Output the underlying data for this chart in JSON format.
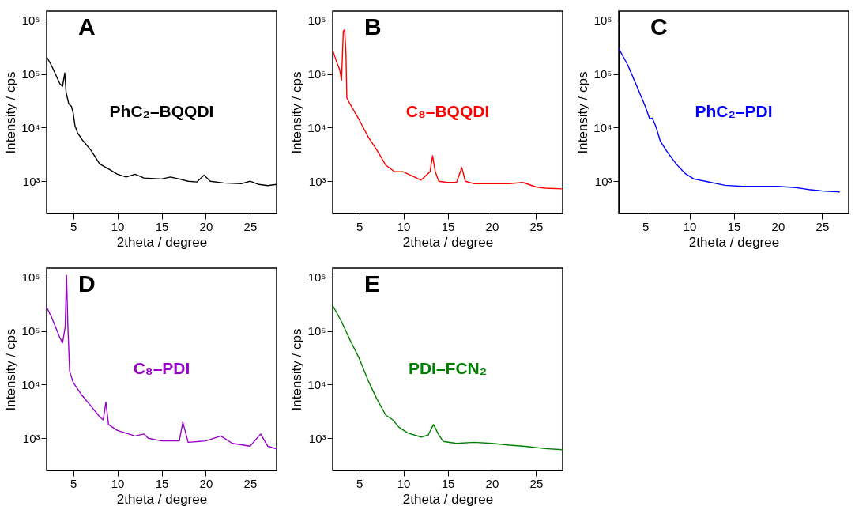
{
  "chart_data": [
    {
      "type": "line",
      "title": "A",
      "xlabel": "2theta / degree",
      "ylabel": "Intensity / cps",
      "log": true,
      "xlim": [
        2,
        28
      ],
      "ylim": [
        250,
        1500000
      ],
      "xticks": [
        5,
        10,
        15,
        20,
        25
      ],
      "yticks": [
        {
          "value": 1000,
          "label": "10³"
        },
        {
          "value": 10000,
          "label": "10⁴"
        },
        {
          "value": 100000,
          "label": "10⁵"
        },
        {
          "value": 1000000,
          "label": "10⁶"
        }
      ],
      "x": [
        2,
        2.5,
        3,
        3.5,
        3.8,
        4.05,
        4.2,
        4.5,
        4.8,
        5,
        5.2,
        5.5,
        6,
        7,
        8,
        9,
        10,
        11,
        12,
        13,
        15,
        16,
        17,
        18,
        19,
        19.8,
        20.5,
        22,
        24,
        25,
        26,
        27,
        28
      ],
      "series": [
        {
          "name": "PhC₂–BQQDI",
          "color": "#000000",
          "values": [
            210000,
            150000,
            100000,
            66000,
            59000,
            105000,
            46000,
            28000,
            25000,
            19000,
            11000,
            8000,
            6000,
            3800,
            2100,
            1700,
            1350,
            1200,
            1350,
            1150,
            1100,
            1200,
            1100,
            1000,
            970,
            1300,
            1000,
            930,
            900,
            1000,
            870,
            830,
            870
          ]
        }
      ]
    },
    {
      "type": "line",
      "title": "B",
      "xlabel": "2theta / degree",
      "ylabel": "Intensity / cps",
      "log": true,
      "xlim": [
        2,
        28
      ],
      "ylim": [
        250,
        1500000
      ],
      "xticks": [
        5,
        10,
        15,
        20,
        25
      ],
      "yticks": [
        {
          "value": 1000,
          "label": "10³"
        },
        {
          "value": 10000,
          "label": "10⁴"
        },
        {
          "value": 100000,
          "label": "10⁵"
        },
        {
          "value": 1000000,
          "label": "10⁶"
        }
      ],
      "x": [
        2,
        2.5,
        2.8,
        3,
        3.2,
        3.35,
        3.5,
        3.6,
        4,
        5,
        6,
        7,
        8,
        9,
        10,
        11,
        12,
        13,
        13.3,
        13.6,
        14,
        15,
        16,
        16.6,
        17,
        18,
        20,
        22,
        23.5,
        25,
        26,
        28
      ],
      "series": [
        {
          "name": "C₈–BQQDI",
          "color": "#ff0000",
          "values": [
            280000,
            160000,
            120000,
            77000,
            630000,
            670000,
            250000,
            36000,
            27000,
            14000,
            6800,
            3800,
            2000,
            1500,
            1500,
            1250,
            1050,
            1500,
            3000,
            1500,
            1000,
            950,
            950,
            1800,
            1000,
            900,
            900,
            900,
            950,
            780,
            740,
            720
          ]
        }
      ]
    },
    {
      "type": "line",
      "title": "C",
      "xlabel": "2theta / degree",
      "ylabel": "Intensity / cps",
      "log": true,
      "xlim": [
        2,
        28
      ],
      "ylim": [
        250,
        1500000
      ],
      "xticks": [
        5,
        10,
        15,
        20,
        25
      ],
      "yticks": [
        {
          "value": 1000,
          "label": "10³"
        },
        {
          "value": 10000,
          "label": "10⁴"
        },
        {
          "value": 100000,
          "label": "10⁵"
        },
        {
          "value": 1000000,
          "label": "10⁶"
        }
      ],
      "x": [
        2,
        3,
        4,
        5,
        5.5,
        5.8,
        6.2,
        6.7,
        7.5,
        8.5,
        9.5,
        10.5,
        12,
        14,
        16,
        18,
        20,
        22,
        23.5,
        25,
        27
      ],
      "series": [
        {
          "name": "PhC₂–PDI",
          "color": "#0000ff",
          "values": [
            300000,
            150000,
            62000,
            25000,
            14500,
            15000,
            10500,
            5600,
            3500,
            2100,
            1400,
            1100,
            980,
            840,
            800,
            800,
            800,
            760,
            700,
            660,
            630
          ]
        }
      ]
    },
    {
      "type": "line",
      "title": "D",
      "xlabel": "2theta / degree",
      "ylabel": "Intensity / cps",
      "log": true,
      "xlim": [
        2,
        28
      ],
      "ylim": [
        250,
        1500000
      ],
      "xticks": [
        5,
        10,
        15,
        20,
        25
      ],
      "yticks": [
        {
          "value": 1000,
          "label": "10³"
        },
        {
          "value": 10000,
          "label": "10⁴"
        },
        {
          "value": 100000,
          "label": "10⁵"
        },
        {
          "value": 1000000,
          "label": "10⁶"
        }
      ],
      "x": [
        2,
        2.5,
        3,
        3.5,
        3.8,
        4.1,
        4.25,
        4.4,
        4.6,
        5,
        6,
        7,
        8,
        8.4,
        8.7,
        9,
        10,
        12,
        13,
        13.5,
        15,
        17,
        17.4,
        18,
        20,
        21.7,
        23,
        25,
        26.2,
        27,
        28
      ],
      "series": [
        {
          "name": "C₈–PDI",
          "color": "#9900cc",
          "values": [
            280000,
            190000,
            120000,
            75000,
            60000,
            120000,
            1100000,
            125000,
            18000,
            11000,
            6300,
            4000,
            2500,
            2200,
            4700,
            1800,
            1400,
            1100,
            1200,
            1000,
            890,
            890,
            2000,
            840,
            890,
            1100,
            800,
            710,
            1200,
            710,
            630
          ]
        }
      ]
    },
    {
      "type": "line",
      "title": "E",
      "xlabel": "2theta / degree",
      "ylabel": "Intensity / cps",
      "log": true,
      "xlim": [
        2,
        28
      ],
      "ylim": [
        250,
        1500000
      ],
      "xticks": [
        5,
        10,
        15,
        20,
        25
      ],
      "yticks": [
        {
          "value": 1000,
          "label": "10³"
        },
        {
          "value": 10000,
          "label": "10⁴"
        },
        {
          "value": 100000,
          "label": "10⁵"
        },
        {
          "value": 1000000,
          "label": "10⁶"
        }
      ],
      "x": [
        2,
        3,
        4,
        5,
        6,
        7,
        8,
        8.8,
        9.5,
        10.5,
        12,
        12.8,
        13.4,
        14,
        14.5,
        16,
        18,
        20,
        22,
        24,
        26,
        28
      ],
      "series": [
        {
          "name": "PDI–FCN₂",
          "color": "#008000",
          "values": [
            300000,
            150000,
            66000,
            31000,
            12000,
            5400,
            2700,
            2200,
            1600,
            1250,
            1050,
            1150,
            1800,
            1150,
            870,
            800,
            840,
            800,
            740,
            700,
            640,
            610
          ]
        }
      ]
    }
  ]
}
